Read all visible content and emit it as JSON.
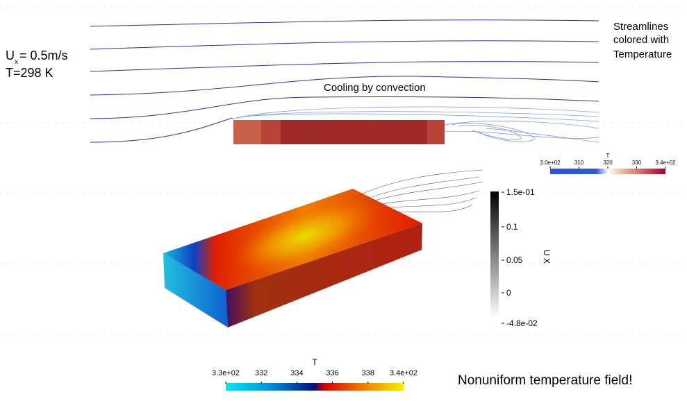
{
  "left_note": {
    "symbol": "U",
    "subscript": "x",
    "velocity": "= 0.5m/s",
    "temperature": "T=298 K"
  },
  "streamlines_note": [
    "Streamlines",
    "colored with",
    "Temperature"
  ],
  "cooling_note": "Cooling by convection",
  "top_colorbar": {
    "title": "T",
    "labels": [
      "3.0e+02",
      "310",
      "320",
      "330",
      "3.4e+02"
    ]
  },
  "velocity_colorbar": {
    "title": "U X",
    "labels": [
      "1.5e-01",
      "0.1",
      "0.05",
      "0",
      "-4.8e-02"
    ]
  },
  "bottom_colorbar": {
    "title": "T",
    "labels": [
      "3.3e+02",
      "332",
      "334",
      "336",
      "338",
      "3.4e+02"
    ]
  },
  "conclusion": "Nonuniform temperature field!"
}
